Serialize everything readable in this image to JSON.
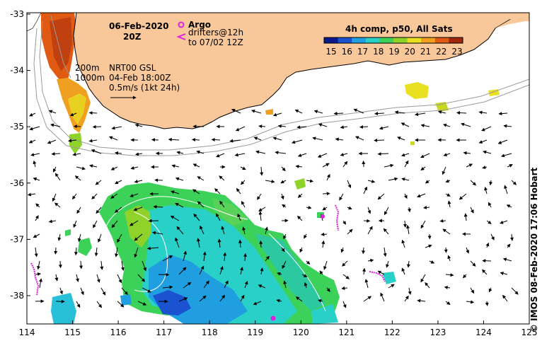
{
  "title": {
    "date": "06-Feb-2020",
    "time": "20Z"
  },
  "legend_argo": {
    "label": "Argo",
    "drifters_line1": "drifters@12h",
    "drifters_line2": "to 07/02 12Z",
    "argo_color": "#e020e0",
    "drifter_color": "#e020e0"
  },
  "colorbar": {
    "title": "4h comp, p50, All Sats",
    "ticks": [
      "15",
      "16",
      "17",
      "18",
      "19",
      "20",
      "21",
      "22",
      "23"
    ],
    "colors": [
      "#0a1a8c",
      "#1a52d0",
      "#1f9fe0",
      "#28d0c8",
      "#3cd25a",
      "#8ed22a",
      "#e8e020",
      "#f0a020",
      "#e05a14",
      "#a0280a"
    ]
  },
  "contours": {
    "line1": "200m",
    "line2": "1000m"
  },
  "current_info": {
    "line1": "NRT00 GSL",
    "line2": "04-Feb 18:00Z",
    "line3": "0.5m/s (1kt 24h)"
  },
  "axes": {
    "x_ticks": [
      "114",
      "115",
      "116",
      "117",
      "118",
      "119",
      "120",
      "121",
      "122",
      "123",
      "124",
      "125"
    ],
    "y_ticks": [
      "-33",
      "-34",
      "-35",
      "-36",
      "-37",
      "-38"
    ]
  },
  "credit": "© IMOS 08-Feb-2020 17:06 Hobart",
  "land_color": "#f8c89a"
}
